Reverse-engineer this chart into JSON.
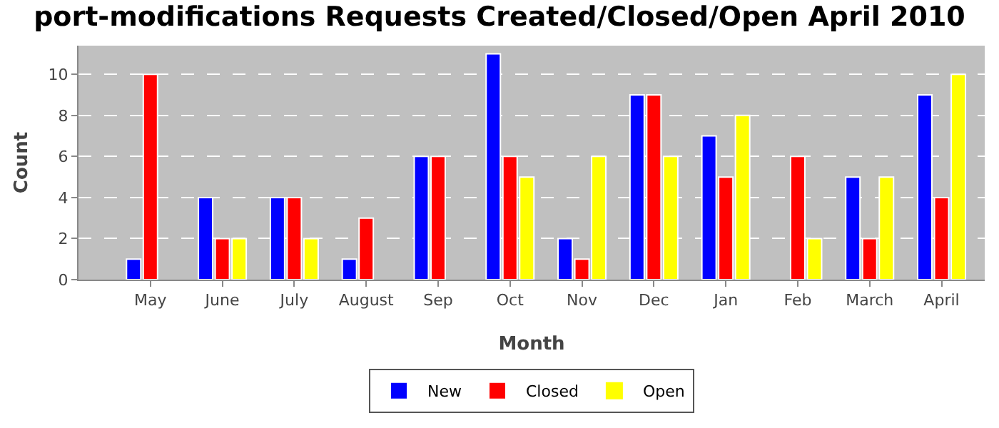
{
  "chart_data": {
    "type": "bar",
    "title": "port-modifications Requests Created/Closed/Open April 2010",
    "xlabel": "Month",
    "ylabel": "Count",
    "categories": [
      "May",
      "June",
      "July",
      "August",
      "Sep",
      "Oct",
      "Nov",
      "Dec",
      "Jan",
      "Feb",
      "March",
      "April"
    ],
    "series": [
      {
        "name": "New",
        "color": "#0000ff",
        "values": [
          1,
          4,
          4,
          1,
          6,
          11,
          2,
          9,
          7,
          0,
          5,
          9
        ]
      },
      {
        "name": "Closed",
        "color": "#ff0000",
        "values": [
          10,
          2,
          4,
          3,
          6,
          6,
          1,
          9,
          5,
          6,
          2,
          4
        ]
      },
      {
        "name": "Open",
        "color": "#ffff00",
        "values": [
          0,
          2,
          2,
          0,
          0,
          5,
          6,
          6,
          8,
          2,
          5,
          10
        ]
      }
    ],
    "ylim": [
      0,
      11.4
    ],
    "yticks": [
      0,
      2,
      4,
      6,
      8,
      10
    ],
    "grid": "y",
    "legend": "bottom"
  }
}
